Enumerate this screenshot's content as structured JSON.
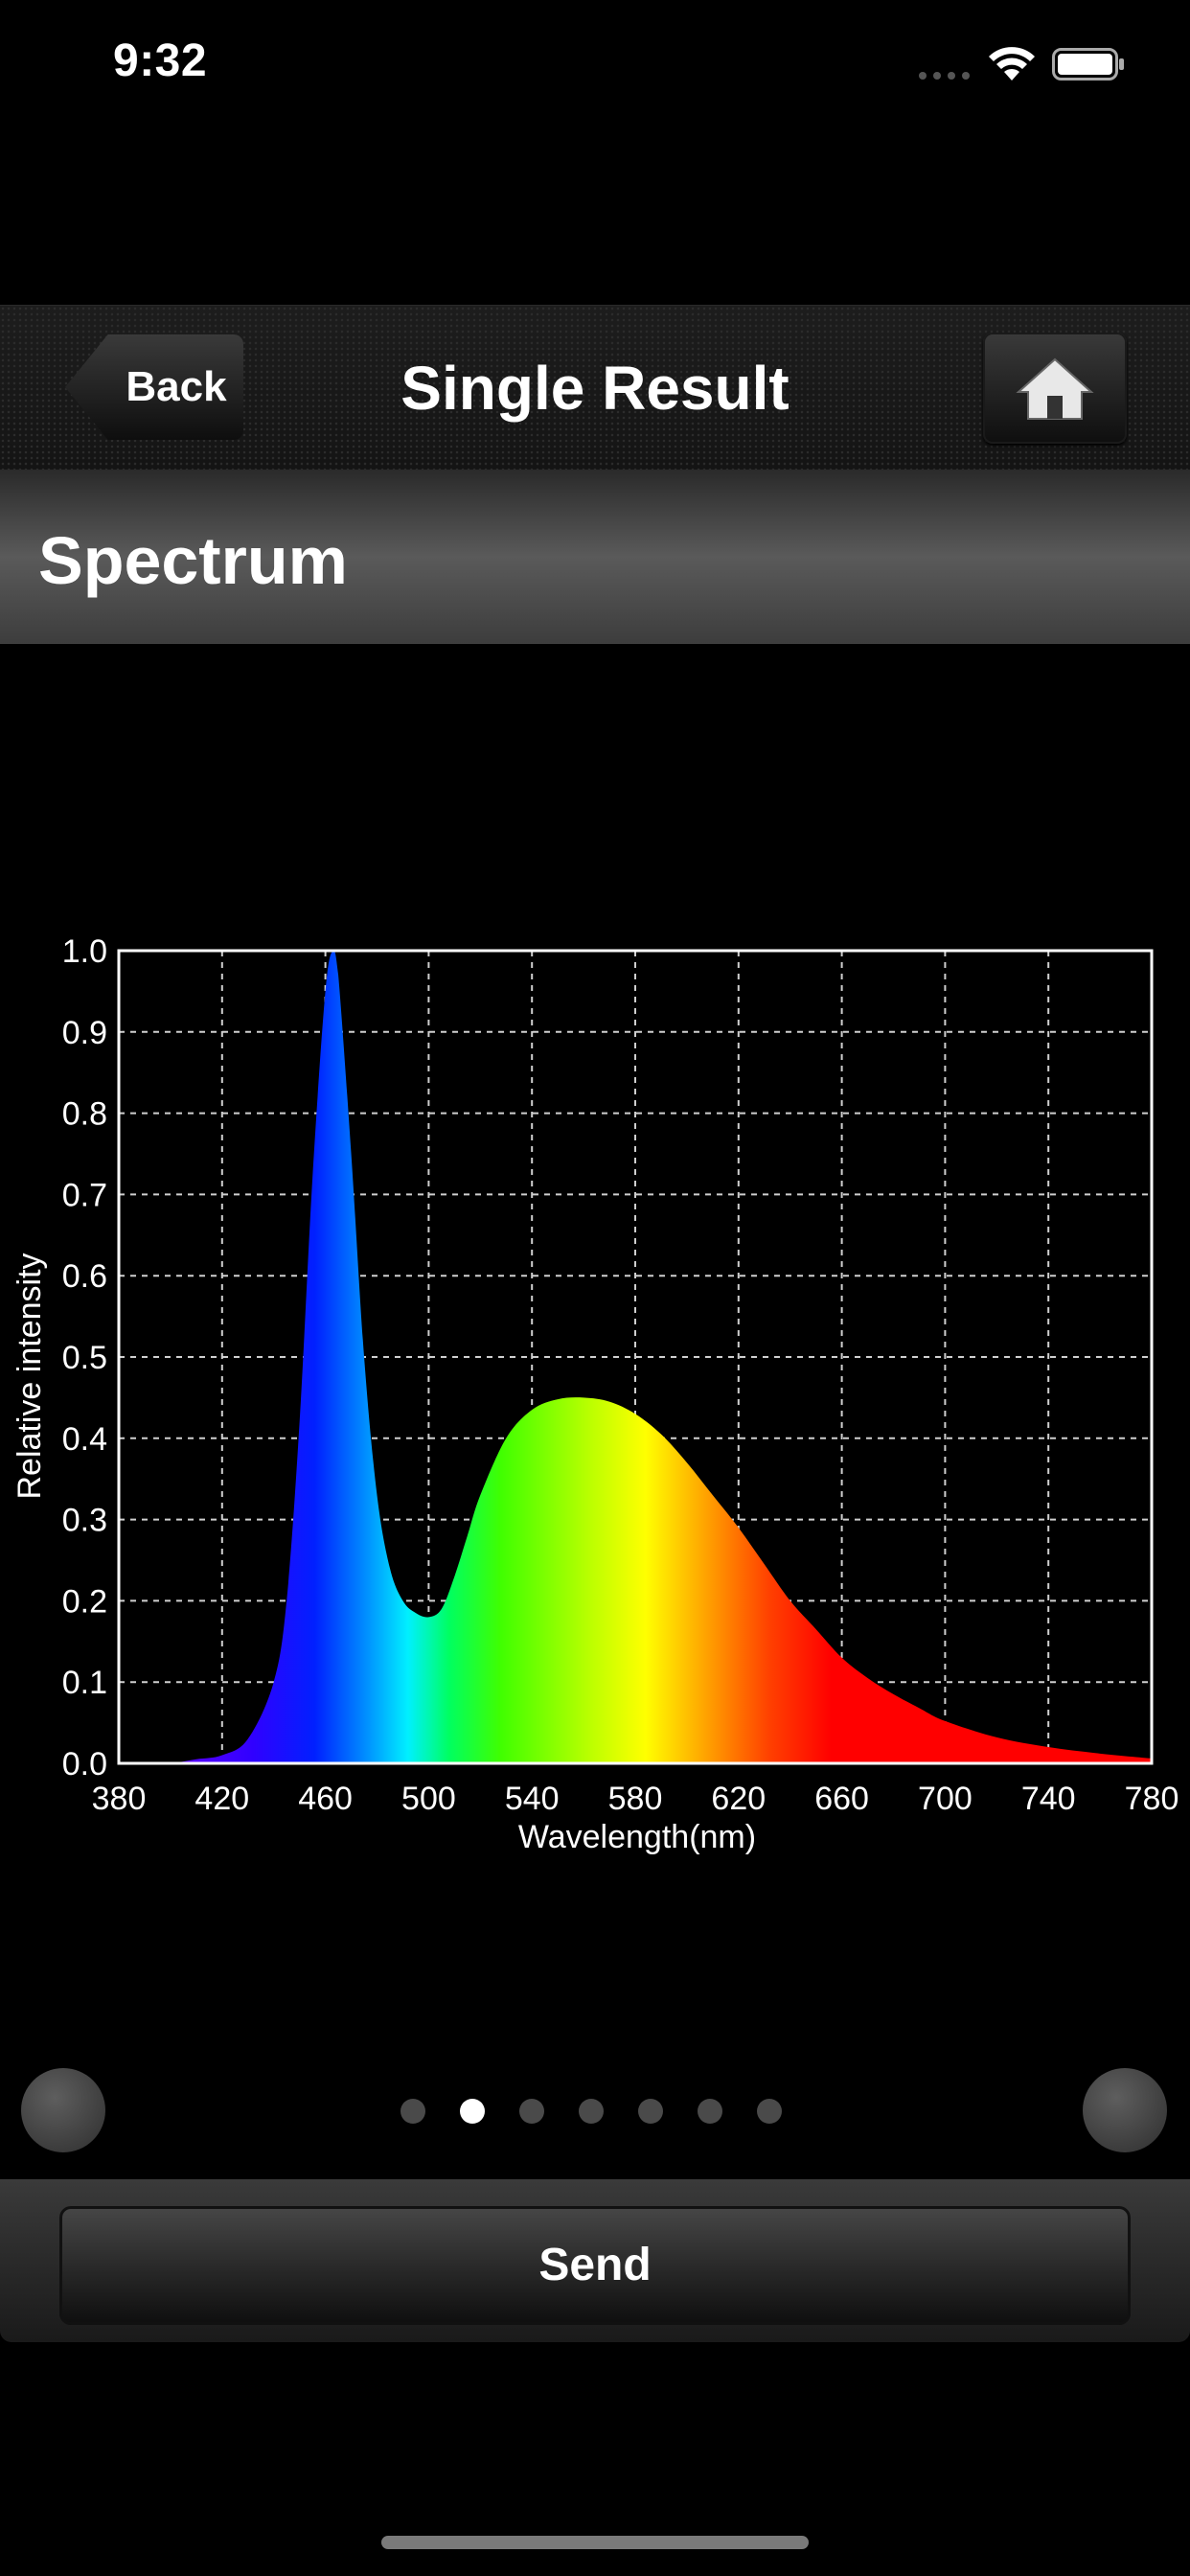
{
  "status_bar": {
    "time": "9:32"
  },
  "navbar": {
    "back_label": "Back",
    "title": "Single Result"
  },
  "section": {
    "title": "Spectrum"
  },
  "chart_data": {
    "type": "area",
    "xlabel": "Wavelength(nm)",
    "ylabel": "Relative intensity",
    "xlim": [
      380,
      780
    ],
    "ylim": [
      0,
      1.0
    ],
    "x_ticks": [
      "380",
      "420",
      "460",
      "500",
      "540",
      "580",
      "620",
      "660",
      "700",
      "740",
      "780"
    ],
    "y_ticks": [
      "0.0",
      "0.1",
      "0.2",
      "0.3",
      "0.4",
      "0.5",
      "0.6",
      "0.7",
      "0.8",
      "0.9",
      "1.0"
    ],
    "grid": true,
    "fill": "visible-spectrum-colors",
    "x": [
      380,
      390,
      400,
      410,
      420,
      430,
      440,
      445,
      450,
      455,
      460,
      463,
      465,
      470,
      475,
      480,
      485,
      490,
      495,
      500,
      505,
      510,
      515,
      520,
      530,
      540,
      550,
      560,
      570,
      580,
      590,
      600,
      610,
      620,
      630,
      640,
      650,
      660,
      670,
      680,
      690,
      700,
      720,
      740,
      760,
      780
    ],
    "y": [
      0.0,
      0.0,
      0.0,
      0.005,
      0.01,
      0.03,
      0.1,
      0.2,
      0.42,
      0.72,
      0.95,
      1.0,
      0.97,
      0.75,
      0.5,
      0.33,
      0.24,
      0.2,
      0.185,
      0.18,
      0.19,
      0.23,
      0.28,
      0.33,
      0.4,
      0.435,
      0.448,
      0.45,
      0.445,
      0.43,
      0.405,
      0.37,
      0.33,
      0.29,
      0.245,
      0.2,
      0.165,
      0.13,
      0.105,
      0.085,
      0.068,
      0.052,
      0.032,
      0.02,
      0.012,
      0.006
    ]
  },
  "pager": {
    "page_count": 7,
    "active_index": 1
  },
  "bottom": {
    "send_label": "Send"
  },
  "colors": {
    "background": "#000000",
    "text": "#ffffff",
    "grid": "#cfcfcf"
  }
}
